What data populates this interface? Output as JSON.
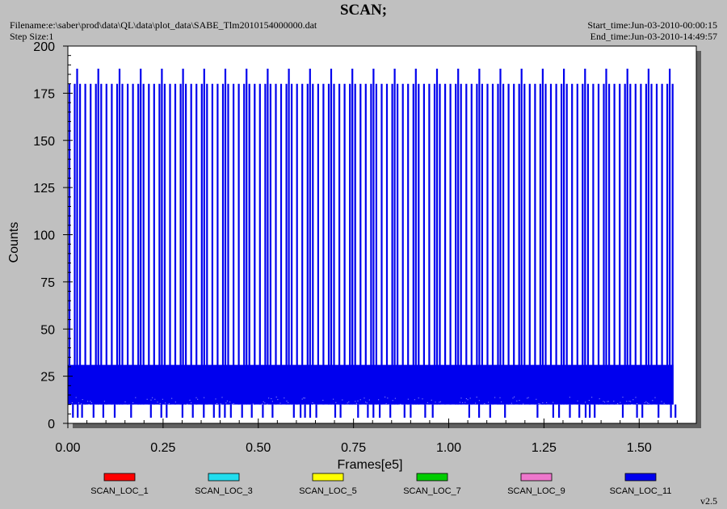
{
  "header": {
    "title": "SCAN;",
    "filename": "Filename:e:\\saber\\prod\\data\\QL\\data\\plot_data\\SABE_Tlm2010154000000.dat",
    "step_size": "Step Size:1",
    "start_time": "Start_time:Jun-03-2010-00:00:15",
    "end_time": "End_time:Jun-03-2010-14:49:57"
  },
  "version": "v2.5",
  "chart_data": {
    "type": "line",
    "title": "SCAN;",
    "xlabel": "Frames[e5]",
    "ylabel": "Counts",
    "xlim": [
      0,
      1.65
    ],
    "ylim": [
      0,
      200
    ],
    "x_ticks": [
      "0.00",
      "0.25",
      "0.50",
      "0.75",
      "1.00",
      "1.25",
      "1.50"
    ],
    "x_tick_values": [
      0,
      0.25,
      0.5,
      0.75,
      1.0,
      1.25,
      1.5
    ],
    "y_ticks": [
      "0",
      "25",
      "50",
      "75",
      "100",
      "125",
      "150",
      "175",
      "200"
    ],
    "y_tick_values": [
      0,
      25,
      50,
      75,
      100,
      125,
      150,
      175,
      200
    ],
    "grid": false,
    "legend_position": "bottom",
    "x_range": [
      0.0,
      1.59
    ],
    "baseline_band": [
      10,
      31
    ],
    "scan_peak_level": 180,
    "tall_spike_level": 188,
    "low_dip_level": 3,
    "series": [
      {
        "name": "SCAN_LOC_1",
        "color": "#ff0000"
      },
      {
        "name": "SCAN_LOC_3",
        "color": "#22ddee"
      },
      {
        "name": "SCAN_LOC_5",
        "color": "#ffff00"
      },
      {
        "name": "SCAN_LOC_7",
        "color": "#00cc00"
      },
      {
        "name": "SCAN_LOC_9",
        "color": "#ee77cc"
      },
      {
        "name": "SCAN_LOC_11",
        "color": "#0000ee"
      }
    ]
  }
}
